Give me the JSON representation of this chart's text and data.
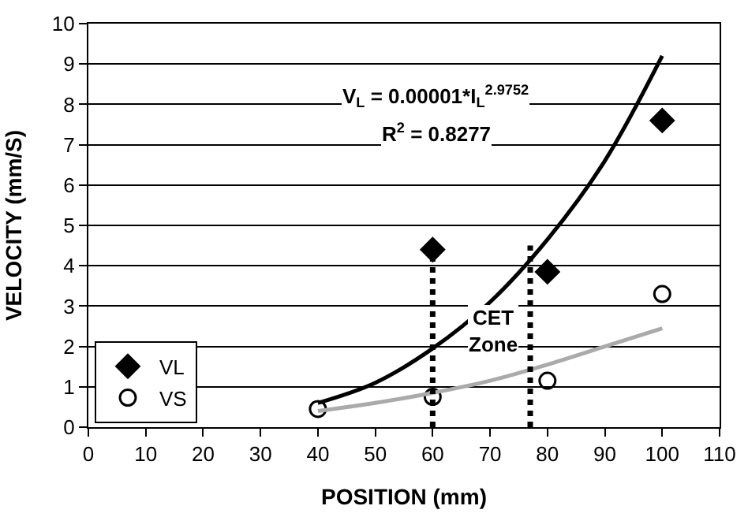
{
  "chart_data": {
    "type": "scatter",
    "xlabel": "POSITION (mm)",
    "ylabel": "VELOCITY (mm/S)",
    "xlim": [
      0,
      110
    ],
    "xticks": [
      0,
      10,
      20,
      30,
      40,
      50,
      60,
      70,
      80,
      90,
      100,
      110
    ],
    "ylim": [
      0,
      10
    ],
    "yticks": [
      0,
      1,
      2,
      3,
      4,
      5,
      6,
      7,
      8,
      9,
      10
    ],
    "grid": "y",
    "legend": "bottom left",
    "series": [
      {
        "name": "VL",
        "marker": "diamond",
        "color": "#000000",
        "x": [
          60,
          80,
          100
        ],
        "values": [
          4.4,
          3.85,
          7.6
        ]
      },
      {
        "name": "VS",
        "marker": "circle",
        "color": "#000000",
        "x": [
          40,
          60,
          80,
          100
        ],
        "values": [
          0.45,
          0.75,
          1.15,
          3.3
        ]
      },
      {
        "type": "line",
        "marker": "none",
        "color": "#000000",
        "x": [
          40,
          50,
          60,
          70,
          80,
          90,
          100
        ],
        "values": [
          0.6,
          1.1,
          1.95,
          3.1,
          4.65,
          6.6,
          9.2
        ]
      },
      {
        "type": "line",
        "marker": "none",
        "color": "#aaaaaa",
        "x": [
          40,
          50,
          60,
          70,
          80,
          90,
          100
        ],
        "values": [
          0.4,
          0.6,
          0.85,
          1.15,
          1.55,
          2.0,
          2.45
        ]
      }
    ],
    "ref_lines": [
      {
        "axis": "x",
        "value": 60,
        "color": "#000000",
        "line_style": "dotted"
      },
      {
        "axis": "x",
        "value": 77,
        "color": "#000000",
        "line_style": "dotted"
      }
    ],
    "annotations": [
      "V$_{L}$ = 0.00001*I$_{L}$$^{2.9752}$",
      "R$^{2}$ = 0.8277",
      "CET\nZone"
    ]
  }
}
